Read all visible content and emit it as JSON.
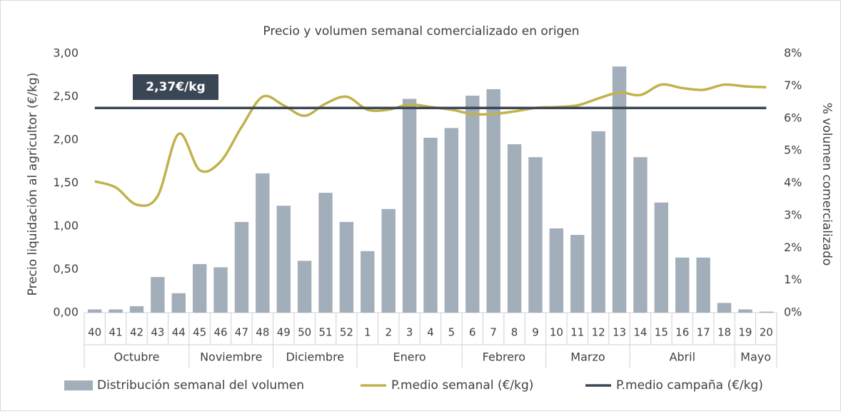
{
  "chart_data": {
    "type": "combo",
    "title": "Precio y volumen semanal comercializado en origen",
    "y_label": "Precio liquidación al agricultor (€/kg)",
    "y2_label": "% volumen comercializado",
    "categories": [
      "40",
      "41",
      "42",
      "43",
      "44",
      "45",
      "46",
      "47",
      "48",
      "49",
      "50",
      "51",
      "52",
      "1",
      "2",
      "3",
      "4",
      "5",
      "6",
      "7",
      "8",
      "9",
      "10",
      "11",
      "12",
      "13",
      "14",
      "15",
      "16",
      "17",
      "18",
      "19",
      "20"
    ],
    "groups": [
      {
        "label": "Octubre",
        "span": 5
      },
      {
        "label": "Noviembre",
        "span": 4
      },
      {
        "label": "Diciembre",
        "span": 4
      },
      {
        "label": "Enero",
        "span": 5
      },
      {
        "label": "Febrero",
        "span": 4
      },
      {
        "label": "Marzo",
        "span": 4
      },
      {
        "label": "Abril",
        "span": 5
      },
      {
        "label": "Mayo",
        "span": 2
      }
    ],
    "series": [
      {
        "name": "Distribución semanal del volumen",
        "type": "bar",
        "axis": "y2",
        "color": "#a3aebb",
        "values": [
          0.1,
          0.1,
          0.2,
          1.1,
          0.6,
          1.5,
          1.4,
          2.8,
          4.3,
          3.3,
          1.6,
          3.7,
          2.8,
          1.9,
          3.2,
          6.6,
          5.4,
          5.7,
          6.7,
          6.9,
          5.2,
          4.8,
          2.6,
          2.4,
          5.6,
          7.6,
          4.8,
          3.4,
          1.7,
          1.7,
          0.3,
          0.1,
          0.03
        ]
      },
      {
        "name": "P.medio semanal (€/kg)",
        "type": "line",
        "axis": "y",
        "color": "#c2b24b",
        "values": [
          1.52,
          1.45,
          1.25,
          1.35,
          2.07,
          1.65,
          1.75,
          2.15,
          2.5,
          2.4,
          2.28,
          2.42,
          2.5,
          2.35,
          2.35,
          2.41,
          2.38,
          2.35,
          2.3,
          2.3,
          2.33,
          2.37,
          2.38,
          2.4,
          2.48,
          2.55,
          2.52,
          2.64,
          2.6,
          2.58,
          2.64,
          2.62,
          2.61
        ]
      },
      {
        "name": "P.medio campaña (€/kg)",
        "type": "hline",
        "axis": "y",
        "color": "#3b4655",
        "value": 2.37,
        "value_label": "2,37€/kg"
      }
    ],
    "ylim": [
      0,
      3
    ],
    "yticks": [
      {
        "value": 0,
        "label": "0,00"
      },
      {
        "value": 0.5,
        "label": "0,50"
      },
      {
        "value": 1,
        "label": "1,00"
      },
      {
        "value": 1.5,
        "label": "1,50"
      },
      {
        "value": 2,
        "label": "2,00"
      },
      {
        "value": 2.5,
        "label": "2,50"
      },
      {
        "value": 3,
        "label": "3,00"
      }
    ],
    "y2lim": [
      0,
      8
    ],
    "y2ticks": [
      {
        "value": 0,
        "label": "0%"
      },
      {
        "value": 1,
        "label": "1%"
      },
      {
        "value": 2,
        "label": "2%"
      },
      {
        "value": 3,
        "label": "3%"
      },
      {
        "value": 4,
        "label": "4%"
      },
      {
        "value": 5,
        "label": "5%"
      },
      {
        "value": 6,
        "label": "6%"
      },
      {
        "value": 7,
        "label": "7%"
      },
      {
        "value": 8,
        "label": "8%"
      }
    ],
    "grid": false,
    "legend": "bottom"
  }
}
